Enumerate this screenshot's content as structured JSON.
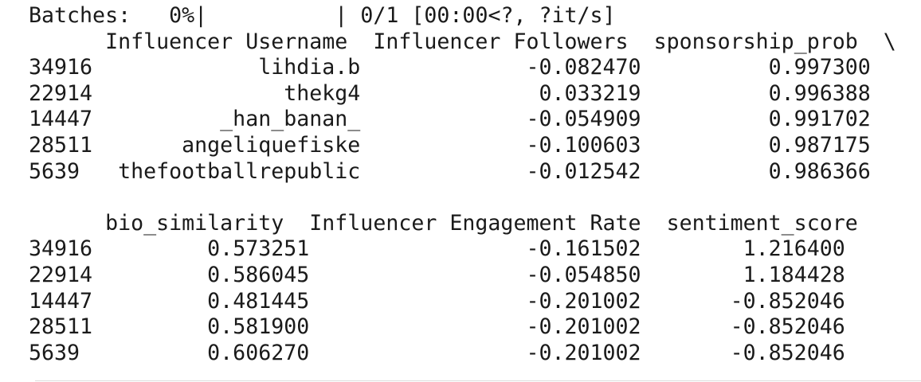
{
  "progress": {
    "label": "Batches:",
    "percent": "0%",
    "count": "0/1",
    "timing": "[00:00<?, ?it/s]",
    "fraction": 0
  },
  "table1": {
    "columns": [
      "Influencer Username",
      "Influencer Followers",
      "sponsorship_prob"
    ],
    "continuation": "\\",
    "rows": [
      {
        "index": "34916",
        "cells": [
          "lihdia.b",
          "-0.082470",
          "0.997300"
        ]
      },
      {
        "index": "22914",
        "cells": [
          "thekg4",
          "0.033219",
          "0.996388"
        ]
      },
      {
        "index": "14447",
        "cells": [
          "_han_banan_",
          "-0.054909",
          "0.991702"
        ]
      },
      {
        "index": "28511",
        "cells": [
          "angeliquefiske",
          "-0.100603",
          "0.987175"
        ]
      },
      {
        "index": "5639",
        "cells": [
          "thefootballrepublic",
          "-0.012542",
          "0.986366"
        ]
      }
    ]
  },
  "table2": {
    "columns": [
      "bio_similarity",
      "Influencer Engagement Rate",
      "sentiment_score"
    ],
    "rows": [
      {
        "index": "34916",
        "cells": [
          "0.573251",
          "-0.161502",
          "1.216400"
        ]
      },
      {
        "index": "22914",
        "cells": [
          "0.586045",
          "-0.054850",
          "1.184428"
        ]
      },
      {
        "index": "14447",
        "cells": [
          "0.481445",
          "-0.201002",
          "-0.852046"
        ]
      },
      {
        "index": "28511",
        "cells": [
          "0.581900",
          "-0.201002",
          "-0.852046"
        ]
      },
      {
        "index": "5639",
        "cells": [
          "0.606270",
          "-0.201002",
          "-0.852046"
        ]
      }
    ]
  }
}
